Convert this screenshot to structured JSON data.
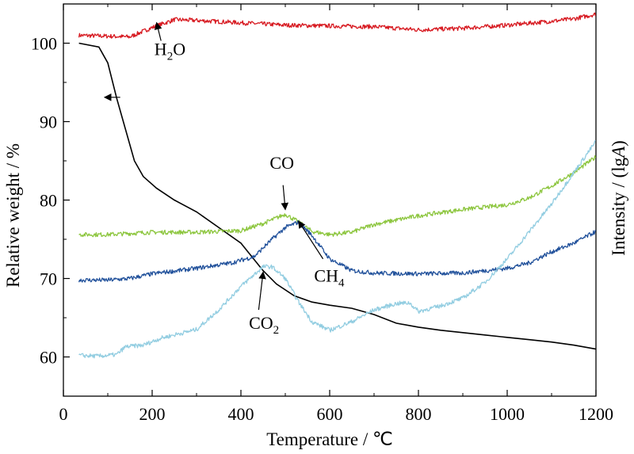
{
  "chart_data": {
    "type": "line",
    "xlabel": "Temperature / ℃",
    "ylabel_left": "Relative weight / %",
    "ylabel_right_prefix": "Intensity / (lg",
    "ylabel_right_italic": "A",
    "ylabel_right_suffix": ")",
    "xlim": [
      0,
      1200
    ],
    "ylim": [
      55,
      105
    ],
    "x_ticks": [
      0,
      200,
      400,
      600,
      800,
      1000,
      1200
    ],
    "y_ticks": [
      60,
      70,
      80,
      90,
      100
    ],
    "grid": false,
    "legend": "none",
    "series": [
      {
        "key": "weight",
        "color": "#000000",
        "points": [
          [
            35,
            100
          ],
          [
            80,
            99.5
          ],
          [
            100,
            97.5
          ],
          [
            120,
            93
          ],
          [
            140,
            89
          ],
          [
            160,
            85
          ],
          [
            180,
            83
          ],
          [
            210,
            81.5
          ],
          [
            250,
            80
          ],
          [
            300,
            78.5
          ],
          [
            350,
            76.5
          ],
          [
            400,
            74.5
          ],
          [
            450,
            71
          ],
          [
            480,
            69.3
          ],
          [
            520,
            67.8
          ],
          [
            560,
            67
          ],
          [
            600,
            66.6
          ],
          [
            650,
            66.2
          ],
          [
            700,
            65.4
          ],
          [
            750,
            64.3
          ],
          [
            800,
            63.8
          ],
          [
            850,
            63.4
          ],
          [
            900,
            63.1
          ],
          [
            950,
            62.8
          ],
          [
            1000,
            62.5
          ],
          [
            1050,
            62.2
          ],
          [
            1100,
            61.9
          ],
          [
            1150,
            61.5
          ],
          [
            1200,
            61
          ]
        ]
      },
      {
        "key": "h2o",
        "color": "#d71920",
        "points": [
          [
            35,
            101
          ],
          [
            100,
            100.9
          ],
          [
            150,
            100.8
          ],
          [
            200,
            102
          ],
          [
            250,
            103
          ],
          [
            300,
            102.9
          ],
          [
            400,
            102.6
          ],
          [
            500,
            102.3
          ],
          [
            600,
            102.2
          ],
          [
            700,
            102.1
          ],
          [
            800,
            101.7
          ],
          [
            900,
            101.9
          ],
          [
            1000,
            102.3
          ],
          [
            1100,
            102.8
          ],
          [
            1150,
            103.1
          ],
          [
            1200,
            103.7
          ]
        ]
      },
      {
        "key": "co",
        "color": "#8dc63f",
        "points": [
          [
            35,
            75.6
          ],
          [
            100,
            75.6
          ],
          [
            200,
            75.9
          ],
          [
            300,
            75.9
          ],
          [
            400,
            76.1
          ],
          [
            450,
            77
          ],
          [
            500,
            78.2
          ],
          [
            530,
            77.2
          ],
          [
            560,
            76
          ],
          [
            600,
            75.6
          ],
          [
            650,
            75.9
          ],
          [
            700,
            76.9
          ],
          [
            800,
            78
          ],
          [
            900,
            78.8
          ],
          [
            1000,
            79.4
          ],
          [
            1050,
            80.3
          ],
          [
            1100,
            81.8
          ],
          [
            1150,
            83.5
          ],
          [
            1200,
            85.5
          ]
        ]
      },
      {
        "key": "ch4",
        "color": "#21519b",
        "points": [
          [
            35,
            69.8
          ],
          [
            100,
            69.8
          ],
          [
            150,
            70
          ],
          [
            200,
            70.6
          ],
          [
            300,
            71.3
          ],
          [
            380,
            72
          ],
          [
            430,
            72.8
          ],
          [
            470,
            75
          ],
          [
            500,
            76.5
          ],
          [
            530,
            77.2
          ],
          [
            560,
            75.5
          ],
          [
            600,
            72.5
          ],
          [
            650,
            71
          ],
          [
            700,
            70.7
          ],
          [
            800,
            70.6
          ],
          [
            900,
            70.7
          ],
          [
            1000,
            71.3
          ],
          [
            1050,
            72
          ],
          [
            1100,
            73.4
          ],
          [
            1150,
            74.5
          ],
          [
            1200,
            76
          ]
        ]
      },
      {
        "key": "co2",
        "color": "#92cde1",
        "points": [
          [
            35,
            60.2
          ],
          [
            80,
            60.1
          ],
          [
            120,
            60.3
          ],
          [
            140,
            61.3
          ],
          [
            180,
            61.5
          ],
          [
            220,
            62.4
          ],
          [
            300,
            63.5
          ],
          [
            350,
            66
          ],
          [
            400,
            69
          ],
          [
            450,
            71.5
          ],
          [
            470,
            71.5
          ],
          [
            500,
            70
          ],
          [
            530,
            67
          ],
          [
            560,
            64.5
          ],
          [
            600,
            63.4
          ],
          [
            650,
            64.5
          ],
          [
            700,
            66
          ],
          [
            750,
            66.8
          ],
          [
            780,
            66.9
          ],
          [
            800,
            65.8
          ],
          [
            850,
            66.5
          ],
          [
            900,
            67.5
          ],
          [
            950,
            69.5
          ],
          [
            1000,
            72.5
          ],
          [
            1050,
            76
          ],
          [
            1100,
            79.5
          ],
          [
            1150,
            83.5
          ],
          [
            1200,
            87.5
          ]
        ]
      }
    ],
    "annotations": [
      {
        "key": "h2o",
        "base": "H",
        "sub": "2",
        "tail": "O",
        "text_at": [
          205,
          98.5
        ],
        "arrow_from": [
          220,
          100.3
        ],
        "arrow_to": [
          210,
          102.6
        ]
      },
      {
        "key": "co",
        "base": "CO",
        "sub": "",
        "tail": "",
        "text_at": [
          465,
          84
        ],
        "arrow_from": [
          495,
          81.9
        ],
        "arrow_to": [
          500,
          78.8
        ]
      },
      {
        "key": "ch4",
        "base": "CH",
        "sub": "4",
        "tail": "",
        "text_at": [
          565,
          69.6
        ],
        "arrow_from": [
          585,
          72.5
        ],
        "arrow_to": [
          530,
          77.3
        ]
      },
      {
        "key": "co2",
        "base": "CO",
        "sub": "2",
        "tail": "",
        "text_at": [
          418,
          63.6
        ],
        "arrow_from": [
          440,
          66
        ],
        "arrow_to": [
          450,
          70.8
        ]
      },
      {
        "key": "weight-arrow",
        "base": "",
        "sub": "",
        "tail": "",
        "text_at": [
          0,
          0
        ],
        "arrow_from": [
          128,
          93.1
        ],
        "arrow_to": [
          93,
          93.1
        ]
      }
    ]
  }
}
